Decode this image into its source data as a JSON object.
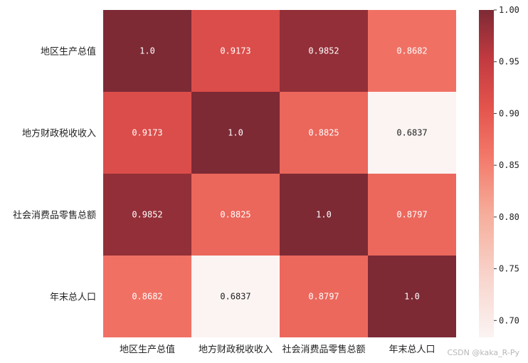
{
  "chart_data": {
    "type": "heatmap",
    "title": "",
    "categories": [
      "地区生产总值",
      "地方财政税收收入",
      "社会消费品零售总额",
      "年末总人口"
    ],
    "values": [
      [
        1.0,
        0.9173,
        0.9852,
        0.8682
      ],
      [
        0.9173,
        1.0,
        0.8825,
        0.6837
      ],
      [
        0.9852,
        0.8825,
        1.0,
        0.8797
      ],
      [
        0.8682,
        0.6837,
        0.8797,
        1.0
      ]
    ],
    "value_labels": [
      [
        "1.0",
        "0.9173",
        "0.9852",
        "0.8682"
      ],
      [
        "0.9173",
        "1.0",
        "0.8825",
        "0.6837"
      ],
      [
        "0.9852",
        "0.8825",
        "1.0",
        "0.8797"
      ],
      [
        "0.8682",
        "0.6837",
        "0.8797",
        "1.0"
      ]
    ],
    "colorbar": {
      "ticks": [
        "0.70",
        "0.75",
        "0.80",
        "0.85",
        "0.90",
        "0.95",
        "1.00"
      ],
      "vmin": 0.6837,
      "vmax": 1.0
    },
    "colors": {
      "low": "#f8efee",
      "mid": "#f1695d",
      "high": "#7d2a35"
    }
  },
  "watermark": "CSDN @kaka_R-Py"
}
